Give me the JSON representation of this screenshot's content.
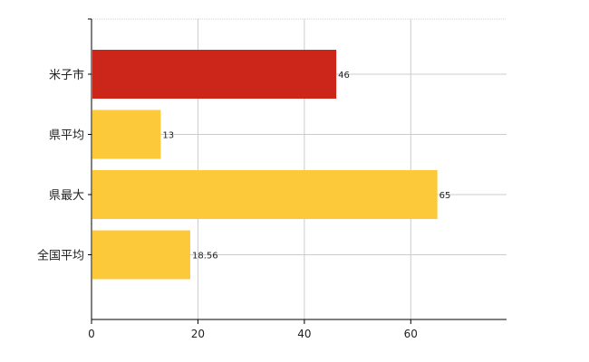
{
  "chart_data": {
    "type": "bar",
    "orientation": "horizontal",
    "categories": [
      "米子市",
      "県平均",
      "県最大",
      "全国平均"
    ],
    "values": [
      46,
      13,
      65,
      18.56
    ],
    "value_labels": [
      "46",
      "13",
      "65",
      "18.56"
    ],
    "bar_colors": [
      "#cc2519",
      "#fbc93a",
      "#fbc93a",
      "#fbc93a"
    ],
    "xlim": [
      0,
      78
    ],
    "xticks": [
      0,
      20,
      40,
      60
    ],
    "grid": true,
    "title": "",
    "xlabel": "",
    "ylabel": ""
  }
}
